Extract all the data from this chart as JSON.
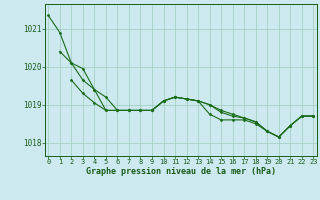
{
  "background_color": "#cde9f0",
  "grid_color": "#a0ccbb",
  "line_color": "#1a6b1a",
  "marker_color": "#1a6b1a",
  "xlabel": "Graphe pression niveau de la mer (hPa)",
  "xlabel_color": "#1a5c1a",
  "tick_color": "#1a5c1a",
  "ylim": [
    1017.65,
    1021.65
  ],
  "xlim": [
    -0.3,
    23.3
  ],
  "yticks": [
    1018,
    1019,
    1020,
    1021
  ],
  "xticks": [
    0,
    1,
    2,
    3,
    4,
    5,
    6,
    7,
    8,
    9,
    10,
    11,
    12,
    13,
    14,
    15,
    16,
    17,
    18,
    19,
    20,
    21,
    22,
    23
  ],
  "series": [
    {
      "x": [
        0,
        1,
        2,
        3,
        4,
        5,
        6,
        7,
        8,
        9,
        10,
        11,
        12,
        13,
        14,
        15,
        16,
        17,
        18,
        19,
        20,
        21,
        22,
        23
      ],
      "y": [
        1021.35,
        1020.9,
        1020.1,
        1019.95,
        1019.4,
        1018.85,
        1018.85,
        1018.85,
        1018.85,
        1018.85,
        1019.1,
        1019.2,
        1019.15,
        1019.1,
        1018.75,
        1018.6,
        1018.6,
        1018.6,
        1018.5,
        1018.3,
        1018.15,
        1018.45,
        1018.7,
        1018.7
      ]
    },
    {
      "x": [
        1,
        2,
        3,
        4,
        5,
        6,
        7,
        8,
        9,
        10,
        11,
        12,
        13,
        14,
        15,
        16,
        17,
        18,
        19,
        20,
        21,
        22,
        23
      ],
      "y": [
        1020.4,
        1020.1,
        1019.65,
        1019.4,
        1019.2,
        1018.85,
        1018.85,
        1018.85,
        1018.85,
        1019.1,
        1019.2,
        1019.15,
        1019.1,
        1019.0,
        1018.8,
        1018.7,
        1018.65,
        1018.55,
        1018.3,
        1018.15,
        1018.45,
        1018.7,
        1018.7
      ]
    },
    {
      "x": [
        2,
        3,
        4,
        5,
        6,
        7,
        8,
        9,
        10,
        11,
        12,
        13,
        14,
        15,
        16,
        17,
        18,
        19,
        20,
        21,
        22,
        23
      ],
      "y": [
        1019.65,
        1019.3,
        1019.05,
        1018.85,
        1018.85,
        1018.85,
        1018.85,
        1018.85,
        1019.1,
        1019.2,
        1019.15,
        1019.1,
        1019.0,
        1018.85,
        1018.75,
        1018.65,
        1018.55,
        1018.3,
        1018.15,
        1018.45,
        1018.7,
        1018.7
      ]
    }
  ],
  "figsize": [
    3.2,
    2.0
  ],
  "dpi": 100
}
